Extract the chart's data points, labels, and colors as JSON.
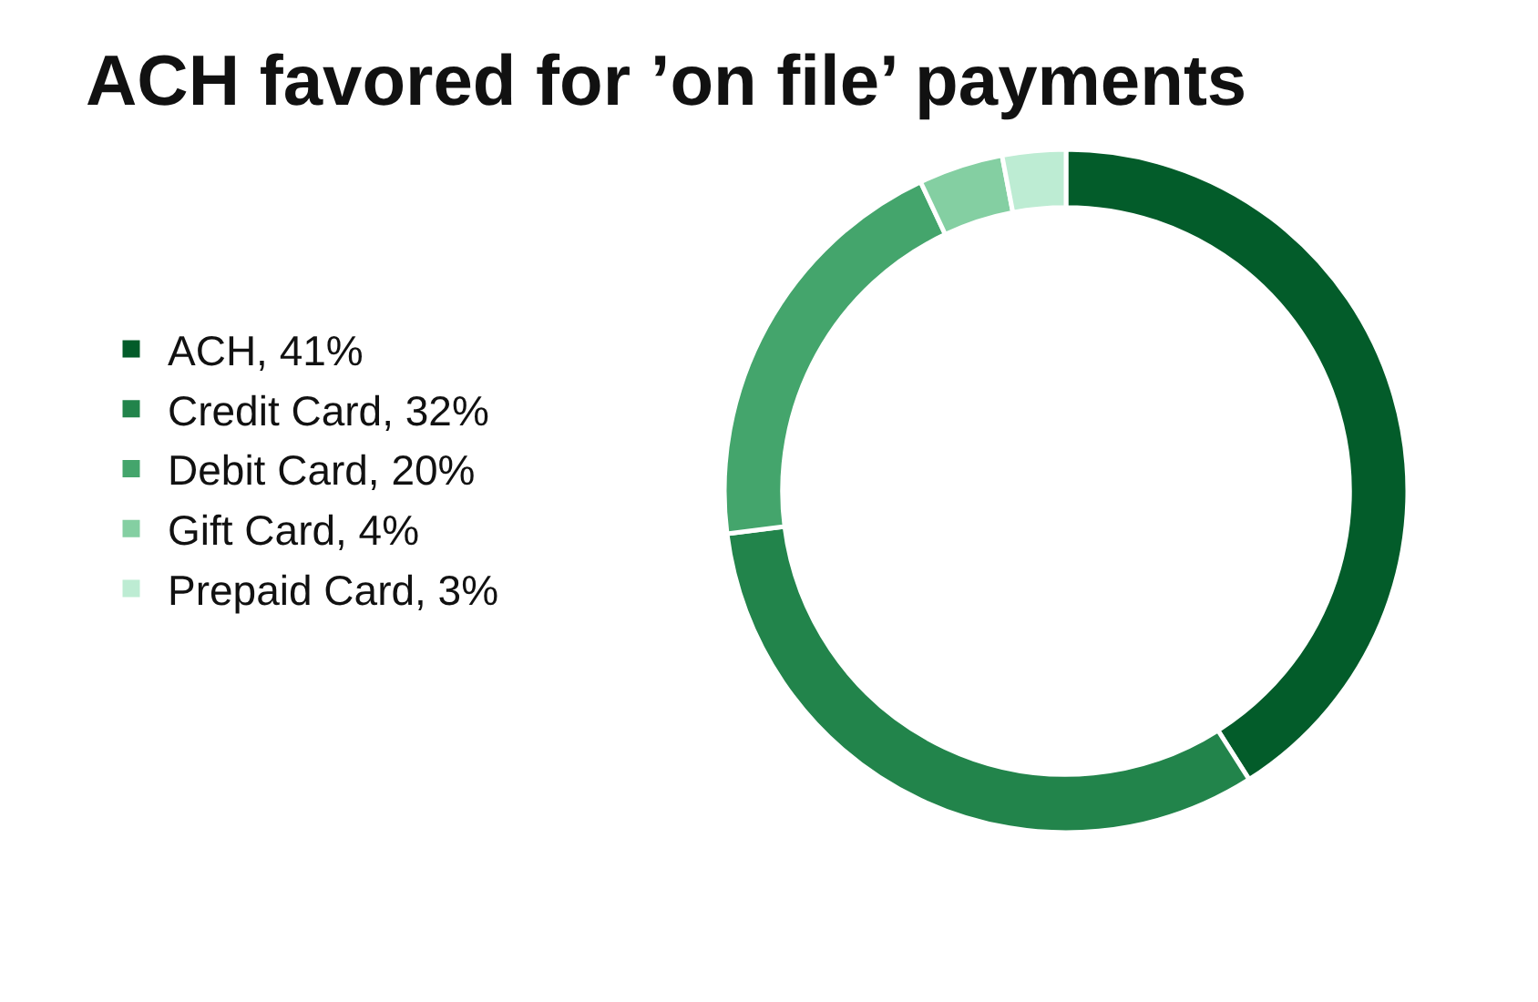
{
  "chart_data": {
    "type": "donut",
    "title": "ACH favored for ’on file’ payments",
    "categories": [
      "ACH, 41%",
      "Credit Card, 32%",
      "Debit Card, 20%",
      "Gift Card, 4%",
      "Prepaid Card, 3%"
    ],
    "values": [
      41,
      32,
      20,
      4,
      3
    ],
    "colors": [
      "#035c2a",
      "#22844b",
      "#44a56c",
      "#84cfa2",
      "#bdecd3"
    ],
    "legend": "left"
  }
}
